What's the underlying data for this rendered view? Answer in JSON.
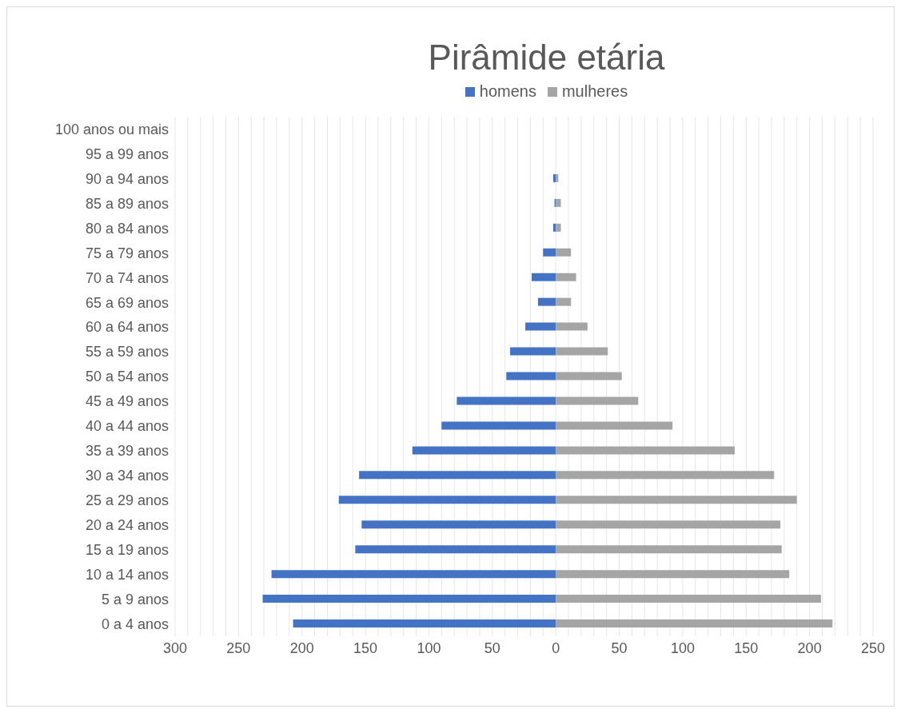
{
  "chart_data": {
    "type": "bar",
    "orientation": "horizontal",
    "title": "Pirâmide etária",
    "legend": "top",
    "grid": "x",
    "stacked": true,
    "categories": [
      "100 anos ou mais",
      "95 a 99 anos",
      "90 a 94 anos",
      "85 a 89 anos",
      "80 a 84 anos",
      "75 a 79 anos",
      "70 a 74 anos",
      "65 a 69 anos",
      "60 a 64 anos",
      "55 a 59 anos",
      "50 a 54 anos",
      "45 a 49 anos",
      "40 a 44 anos",
      "35 a 39 anos",
      "30 a 34 anos",
      "25 a 29 anos",
      "20 a 24 anos",
      "15 a 19 anos",
      "10 a 14 anos",
      "5 a 9 anos",
      "0 a 4 anos"
    ],
    "series": [
      {
        "name": "homens",
        "color": "#4472c4",
        "values": [
          0,
          0,
          -2,
          -1,
          -2,
          -10,
          -19,
          -14,
          -24,
          -36,
          -39,
          -78,
          -90,
          -113,
          -155,
          -171,
          -153,
          -158,
          -224,
          -231,
          -207
        ]
      },
      {
        "name": "mulheres",
        "color": "#a5a5a5",
        "values": [
          0,
          0,
          2,
          4,
          4,
          12,
          16,
          12,
          25,
          41,
          52,
          65,
          92,
          141,
          172,
          190,
          177,
          178,
          184,
          209,
          218
        ]
      }
    ],
    "xlim": [
      -300,
      250
    ],
    "xticks": [
      {
        "value": -300,
        "label": "300"
      },
      {
        "value": -290,
        "label": null
      },
      {
        "value": -280,
        "label": null
      },
      {
        "value": -270,
        "label": null
      },
      {
        "value": -260,
        "label": null
      },
      {
        "value": -250,
        "label": "250"
      },
      {
        "value": -240,
        "label": null
      },
      {
        "value": -230,
        "label": null
      },
      {
        "value": -220,
        "label": null
      },
      {
        "value": -210,
        "label": null
      },
      {
        "value": -200,
        "label": "200"
      },
      {
        "value": -190,
        "label": null
      },
      {
        "value": -180,
        "label": null
      },
      {
        "value": -170,
        "label": null
      },
      {
        "value": -160,
        "label": null
      },
      {
        "value": -150,
        "label": "150"
      },
      {
        "value": -140,
        "label": null
      },
      {
        "value": -130,
        "label": null
      },
      {
        "value": -120,
        "label": null
      },
      {
        "value": -110,
        "label": null
      },
      {
        "value": -100,
        "label": "100"
      },
      {
        "value": -90,
        "label": null
      },
      {
        "value": -80,
        "label": null
      },
      {
        "value": -70,
        "label": null
      },
      {
        "value": -60,
        "label": null
      },
      {
        "value": -50,
        "label": "50"
      },
      {
        "value": -40,
        "label": null
      },
      {
        "value": -30,
        "label": null
      },
      {
        "value": -20,
        "label": null
      },
      {
        "value": -10,
        "label": null
      },
      0,
      {
        "value": 10,
        "label": null
      },
      {
        "value": 20,
        "label": null
      },
      {
        "value": 30,
        "label": null
      },
      {
        "value": 40,
        "label": null
      },
      50,
      {
        "value": 60,
        "label": null
      },
      {
        "value": 70,
        "label": null
      },
      {
        "value": 80,
        "label": null
      },
      {
        "value": 90,
        "label": null
      },
      100,
      {
        "value": 110,
        "label": null
      },
      {
        "value": 120,
        "label": null
      },
      {
        "value": 130,
        "label": null
      },
      {
        "value": 140,
        "label": null
      },
      150,
      {
        "value": 160,
        "label": null
      },
      {
        "value": 170,
        "label": null
      },
      {
        "value": 180,
        "label": null
      },
      {
        "value": 190,
        "label": null
      },
      200,
      {
        "value": 210,
        "label": null
      },
      {
        "value": 220,
        "label": null
      },
      {
        "value": 230,
        "label": null
      },
      {
        "value": 240,
        "label": null
      },
      250
    ]
  }
}
